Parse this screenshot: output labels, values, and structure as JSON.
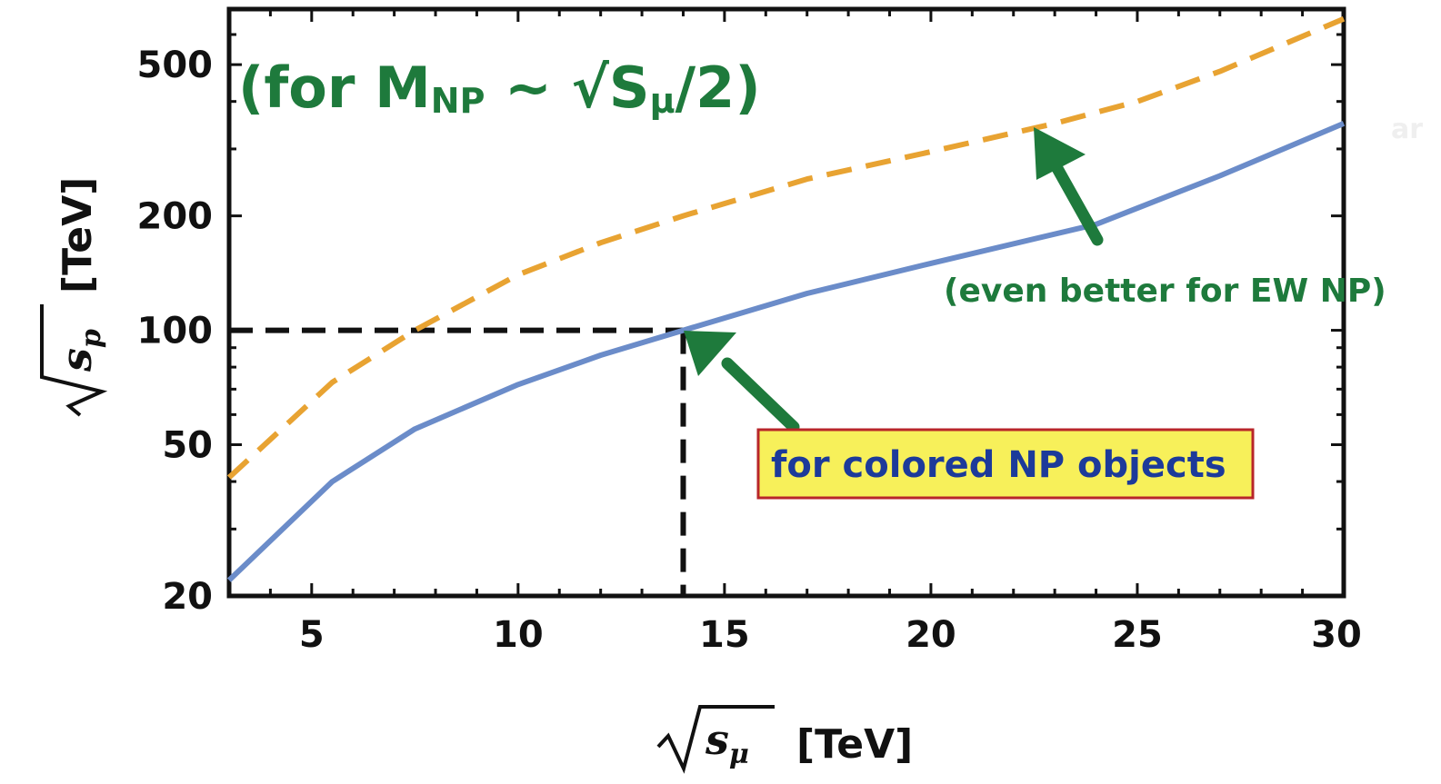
{
  "chart_data": {
    "type": "line",
    "title": "(for M_NP ~ √s_μ/2)",
    "title_parts": {
      "open": "(for M",
      "sub_np": "NP",
      "mid": " ~ √S",
      "sub_mu": "μ",
      "close": "/2)"
    },
    "xlabel": {
      "main": "s",
      "sub": "μ",
      "unit": "[TeV]"
    },
    "ylabel": {
      "main": "s",
      "sub": "p",
      "unit": "[TeV]"
    },
    "x_range": [
      3,
      30
    ],
    "y_range": [
      20,
      700
    ],
    "y_scale": "log",
    "x_ticks": [
      "5",
      "10",
      "15",
      "20",
      "25",
      "30"
    ],
    "y_ticks": [
      "20",
      "50",
      "100",
      "200",
      "500"
    ],
    "series": [
      {
        "color": "#6b8cc9",
        "style": "solid",
        "x": [
          3,
          5.5,
          7.5,
          10,
          12,
          14,
          17,
          20,
          24,
          27,
          30
        ],
        "y": [
          22,
          40,
          55,
          72,
          86,
          100,
          125,
          150,
          190,
          255,
          350
        ]
      },
      {
        "color": "#e8a332",
        "style": "dashed",
        "x": [
          3,
          5.5,
          7.5,
          10,
          12,
          14,
          17,
          20,
          23,
          25,
          27,
          30
        ],
        "y": [
          41,
          73,
          100,
          140,
          170,
          200,
          250,
          295,
          350,
          400,
          480,
          660
        ]
      }
    ],
    "reference_lines": {
      "horizontal_y": 100,
      "vertical_x": 14,
      "color": "#111111",
      "style": "dashed"
    },
    "annotations": {
      "ew_note": "(even better for EW NP)",
      "colored_note": "for colored NP objects",
      "colored_box_fill": "#f7f05a",
      "colored_box_border": "#b8262a",
      "note_color": "#1e7a3c"
    },
    "ghost_text": "ar"
  }
}
